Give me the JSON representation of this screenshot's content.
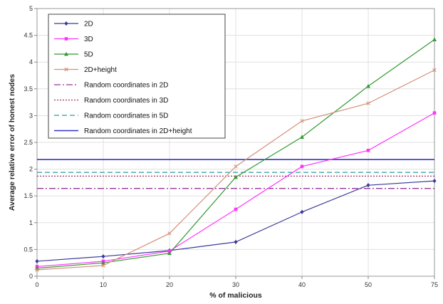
{
  "chart_data": {
    "type": "line",
    "title": "",
    "xlabel": "% of malicious",
    "ylabel": "Average relative error of honest nodes",
    "categories": [
      "0",
      "10",
      "20",
      "30",
      "40",
      "50",
      "75"
    ],
    "ylim": [
      0,
      5
    ],
    "yticks": [
      "0",
      "0.5",
      "1",
      "1.5",
      "2",
      "2.5",
      "3",
      "3.5",
      "4",
      "4.5",
      "5"
    ],
    "grid": true,
    "legend_position": "top-left",
    "series": [
      {
        "name": "2D",
        "values": [
          0.28,
          0.37,
          0.48,
          0.64,
          1.2,
          1.7,
          1.78
        ],
        "color": "#3b3b9a",
        "marker": "diamond",
        "dash": ""
      },
      {
        "name": "3D",
        "values": [
          0.18,
          0.28,
          0.47,
          1.25,
          2.05,
          2.35,
          3.05
        ],
        "color": "#ff33ff",
        "marker": "square",
        "dash": ""
      },
      {
        "name": "5D",
        "values": [
          0.15,
          0.25,
          0.43,
          1.85,
          2.6,
          3.55,
          4.42
        ],
        "color": "#339933",
        "marker": "triangle",
        "dash": ""
      },
      {
        "name": "2D+height",
        "values": [
          0.12,
          0.2,
          0.8,
          2.05,
          2.9,
          3.23,
          3.85
        ],
        "color": "#d4907a",
        "marker": "x",
        "dash": ""
      }
    ],
    "reference_lines": [
      {
        "name": "Random coordinates in 2D",
        "value": 1.64,
        "color": "#993399",
        "dash": "9,3,2,3"
      },
      {
        "name": "Random coordinates in 3D",
        "value": 1.87,
        "color": "#993366",
        "dash": "2,2"
      },
      {
        "name": "Random coordinates in 5D",
        "value": 1.94,
        "color": "#2a9d9d",
        "dash": "7,4"
      },
      {
        "name": "Random coordinates in 2D+height",
        "value": 2.18,
        "color": "#3333cc",
        "dash": ""
      }
    ]
  }
}
